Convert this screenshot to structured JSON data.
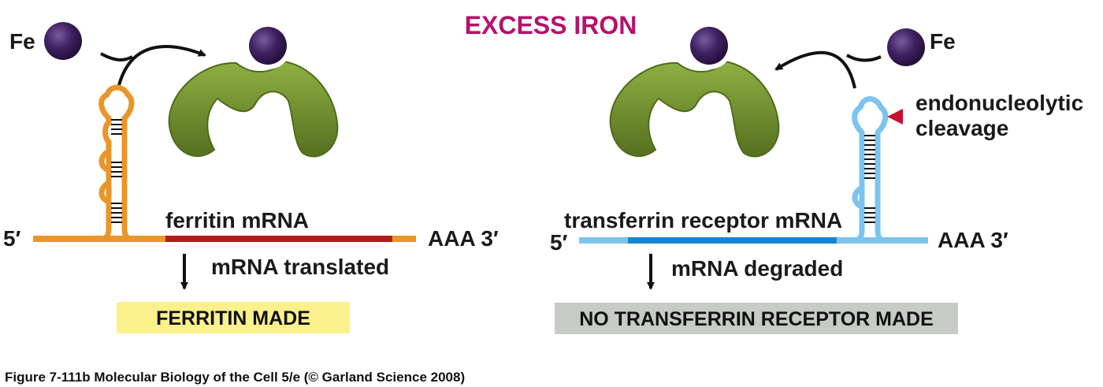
{
  "title": "EXCESS IRON",
  "colors": {
    "title": "#b5126a",
    "iron": "#3e2160",
    "protein": "#6f8f2e",
    "protein_dark": "#4e6b1c",
    "ferritin_stem": "#e8962a",
    "ferritin_coding": "#b01c1c",
    "receptor_stem": "#7cc4ee",
    "receptor_coding": "#1784d3",
    "cleavage_marker": "#c8102e",
    "ferritin_box": "#fbf18c",
    "receptor_box": "#c7cbc6"
  },
  "left_panel": {
    "iron_label": "Fe",
    "five_prime": "5′",
    "three_prime": "AAA 3′",
    "mrna_label": "ferritin mRNA",
    "outcome_label": "mRNA translated",
    "result_label": "FERRITIN MADE"
  },
  "right_panel": {
    "iron_label": "Fe",
    "five_prime": "5′",
    "three_prime": "AAA 3′",
    "mrna_label": "transferrin receptor mRNA",
    "cleavage_label_line1": "endonucleolytic",
    "cleavage_label_line2": "cleavage",
    "outcome_label": "mRNA degraded",
    "result_label": "NO TRANSFERRIN RECEPTOR MADE"
  },
  "caption": "Figure 7-111b  Molecular Biology of the Cell 5/e (© Garland Science 2008)"
}
